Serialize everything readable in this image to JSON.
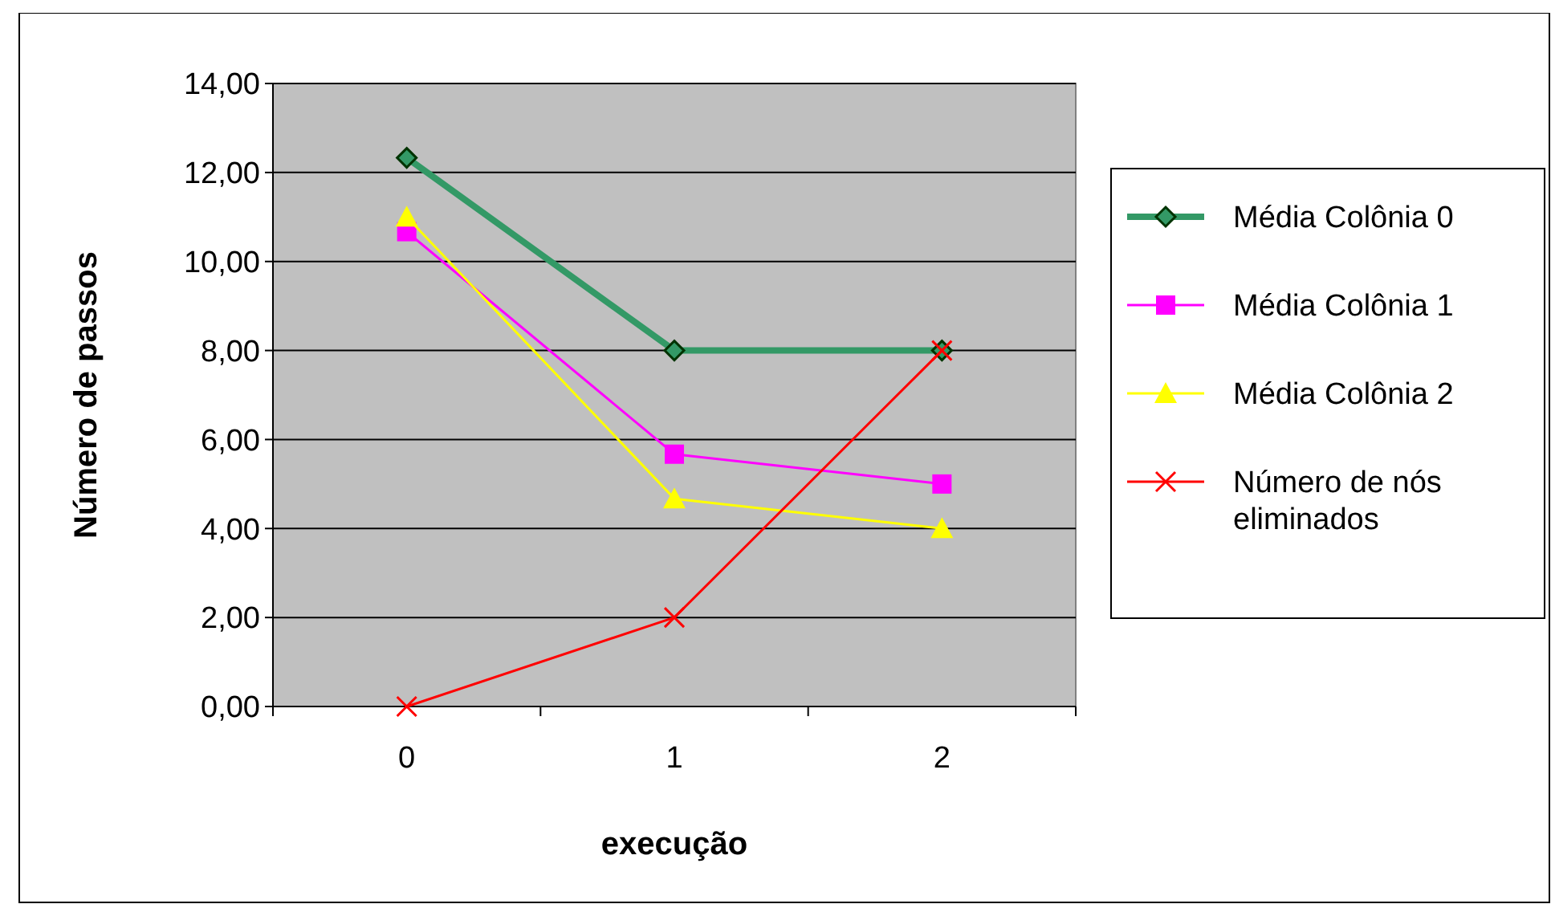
{
  "chart_data": {
    "type": "line",
    "xlabel": "execução",
    "ylabel": "Número de passos",
    "categories": [
      "0",
      "1",
      "2"
    ],
    "series": [
      {
        "name": "Média Colônia 0",
        "color": "#339966",
        "marker": "diamond",
        "values": [
          12.33,
          8,
          8
        ]
      },
      {
        "name": "Média Colônia 1",
        "color": "#ff00ff",
        "marker": "square",
        "values": [
          10.67,
          5.67,
          5
        ]
      },
      {
        "name": "Média Colônia 2",
        "color": "#ffff00",
        "marker": "triangle",
        "values": [
          11,
          4.67,
          4
        ]
      },
      {
        "name": "Número de nós eliminados",
        "color": "#ff0000",
        "marker": "cross",
        "values": [
          0,
          2,
          8
        ]
      }
    ],
    "ylim": [
      0,
      14
    ],
    "yticks": [
      {
        "value": 0,
        "label": "0,00"
      },
      {
        "value": 2,
        "label": "2,00"
      },
      {
        "value": 4,
        "label": "4,00"
      },
      {
        "value": 6,
        "label": "6,00"
      },
      {
        "value": 8,
        "label": "8,00"
      },
      {
        "value": 10,
        "label": "10,00"
      },
      {
        "value": 12,
        "label": "12,00"
      },
      {
        "value": 14,
        "label": "14,00"
      }
    ],
    "grid": "y",
    "legend": "right"
  }
}
